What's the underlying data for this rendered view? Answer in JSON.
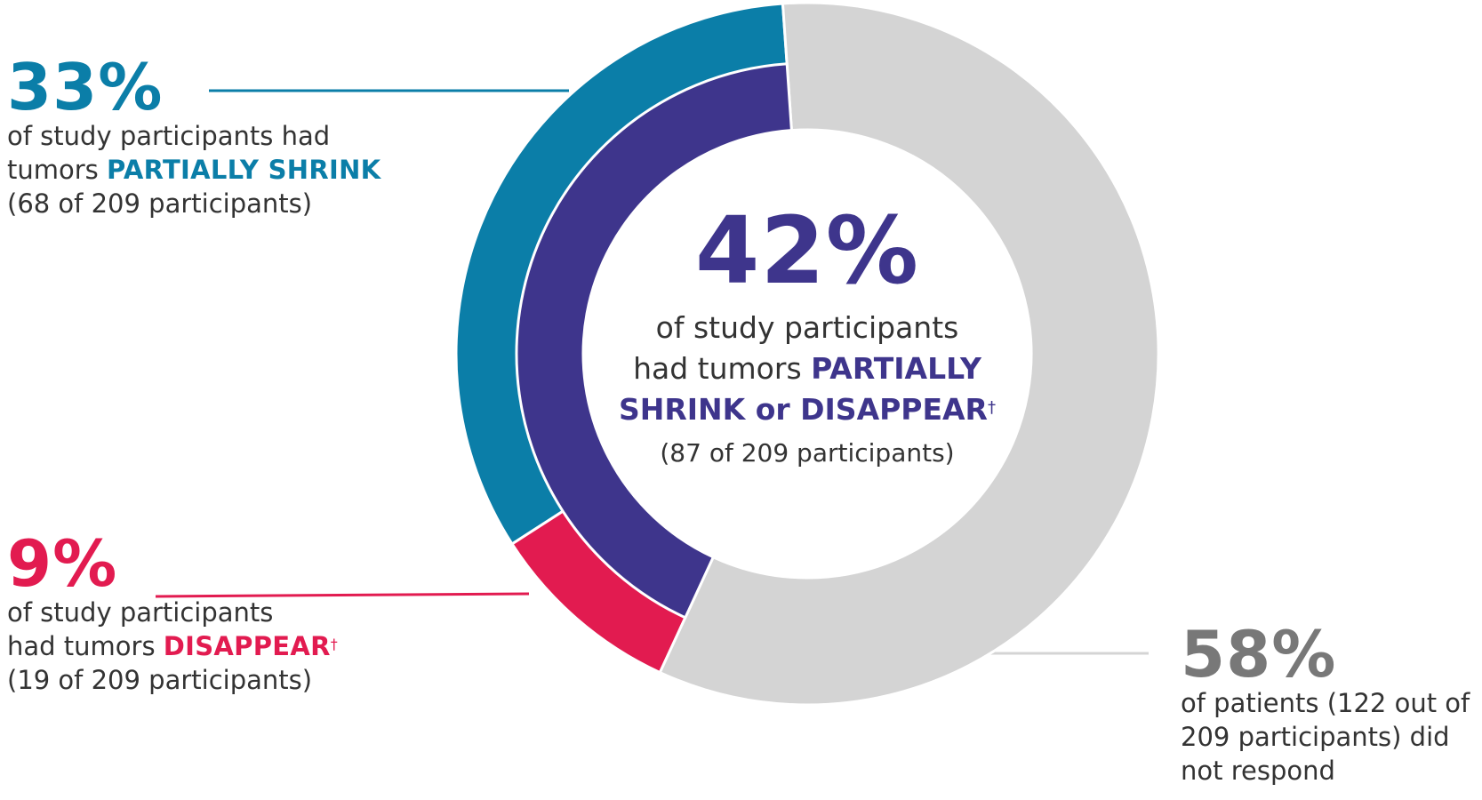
{
  "chart_data": {
    "type": "pie",
    "title": "",
    "outer_ring": {
      "segments": [
        {
          "name": "PARTIALLY SHRINK",
          "value": 33,
          "count": 68,
          "color": "#0b7ea8"
        },
        {
          "name": "DISAPPEAR",
          "value": 9,
          "count": 19,
          "color": "#e21b50"
        },
        {
          "name": "did not respond",
          "value": 58,
          "count": 122,
          "color": "#d4d4d4"
        }
      ]
    },
    "inner_ring": {
      "segments": [
        {
          "name": "PARTIALLY SHRINK or DISAPPEAR",
          "value": 42,
          "count": 87,
          "color": "#3e358c"
        }
      ]
    },
    "total_participants": 209
  },
  "callouts": {
    "shrink": {
      "percent": "33%",
      "line1": "of study participants had",
      "line2_prefix": "tumors ",
      "highlight": "PARTIALLY SHRINK",
      "count": "(68 of 209 participants)"
    },
    "disappear": {
      "percent": "9%",
      "line1": "of study participants",
      "line2_prefix": "had tumors ",
      "highlight": "DISAPPEAR",
      "mark": "†",
      "count": "(19 of 209 participants)"
    },
    "no_response": {
      "percent": "58%",
      "line1": "of patients (122 out of",
      "line2": "209 participants) did",
      "line3": "not respond"
    }
  },
  "center": {
    "percent": "42%",
    "line1": "of study participants",
    "line2_prefix": "had tumors ",
    "highlight1": "PARTIALLY",
    "highlight2": "SHRINK or DISAPPEAR",
    "mark": "†",
    "count": "(87 of 209 participants)"
  },
  "colors": {
    "teal": "#0b7ea8",
    "red": "#e21b50",
    "gray": "#d4d4d4",
    "purple": "#3e358c",
    "text": "#333333",
    "gray_text": "#787878"
  }
}
